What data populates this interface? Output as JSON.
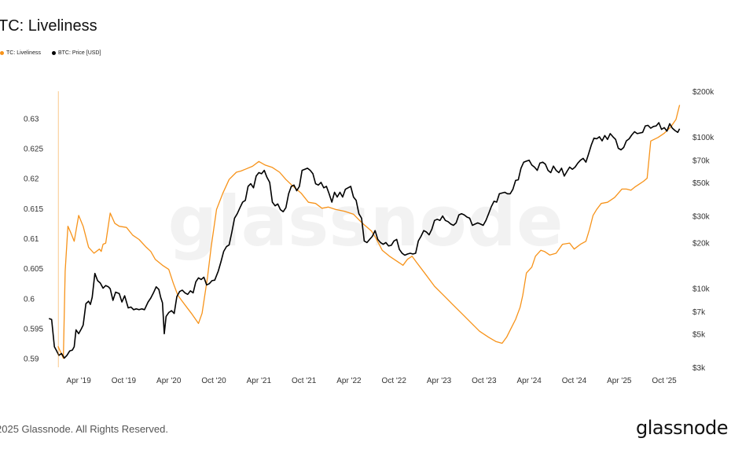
{
  "chart_data": {
    "type": "line",
    "title": "TC: Liveliness",
    "legend": [
      {
        "name": "TC: Liveliness",
        "color": "#f7931a"
      },
      {
        "name": "BTC: Price [USD]",
        "color": "#000000"
      }
    ],
    "x_ticks": [
      "Apr '19",
      "Oct '19",
      "Apr '20",
      "Oct '20",
      "Apr '21",
      "Oct '21",
      "Apr '22",
      "Oct '22",
      "Apr '23",
      "Oct '23",
      "Apr '24",
      "Oct '24",
      "Apr '25",
      "Oct '25"
    ],
    "x_range": [
      2018.9,
      2025.95
    ],
    "y_left": {
      "ticks": [
        0.59,
        0.595,
        0.6,
        0.605,
        0.61,
        0.615,
        0.62,
        0.625,
        0.63
      ],
      "labels": [
        "0.59",
        "0.595",
        "0.6",
        "0.605",
        "0.61",
        "0.615",
        "0.62",
        "0.625",
        "0.63"
      ],
      "range": [
        0.5885,
        0.6345
      ]
    },
    "y_right": {
      "scale": "log",
      "ticks": [
        3000,
        5000,
        7000,
        10000,
        20000,
        30000,
        50000,
        70000,
        100000,
        200000
      ],
      "labels": [
        "$3k",
        "$5k",
        "$7k",
        "$10k",
        "$20k",
        "$30k",
        "$50k",
        "$70k",
        "$100k",
        "$200k"
      ],
      "range": [
        3000,
        200000
      ]
    },
    "series": [
      {
        "name": "TC: Liveliness",
        "axis": "left",
        "color": "#f7931a",
        "x": [
          2019.02,
          2019.05,
          2019.08,
          2019.1,
          2019.13,
          2019.16,
          2019.2,
          2019.25,
          2019.3,
          2019.36,
          2019.42,
          2019.48,
          2019.5,
          2019.52,
          2019.55,
          2019.6,
          2019.65,
          2019.7,
          2019.78,
          2019.85,
          2019.92,
          2020.0,
          2020.05,
          2020.1,
          2020.18,
          2020.25,
          2020.3,
          2020.35,
          2020.4,
          2020.45,
          2020.5,
          2020.58,
          2020.62,
          2020.68,
          2020.72,
          2020.78,
          2020.85,
          2020.92,
          2021.0,
          2021.05,
          2021.1,
          2021.18,
          2021.25,
          2021.32,
          2021.4,
          2021.48,
          2021.55,
          2021.62,
          2021.72,
          2021.8,
          2021.88,
          2021.95,
          2022.02,
          2022.1,
          2022.2,
          2022.3,
          2022.4,
          2022.5,
          2022.55,
          2022.62,
          2022.7,
          2022.78,
          2022.85,
          2022.9,
          2022.95,
          2023.0,
          2023.1,
          2023.2,
          2023.3,
          2023.4,
          2023.5,
          2023.6,
          2023.7,
          2023.8,
          2023.88,
          2023.95,
          2024.0,
          2024.05,
          2024.1,
          2024.15,
          2024.18,
          2024.22,
          2024.28,
          2024.32,
          2024.38,
          2024.42,
          2024.48,
          2024.55,
          2024.62,
          2024.7,
          2024.75,
          2024.82,
          2024.88,
          2024.92,
          2024.96,
          2025.0,
          2025.05,
          2025.12,
          2025.2,
          2025.28,
          2025.33,
          2025.38,
          2025.42,
          2025.47,
          2025.52,
          2025.56,
          2025.6,
          2025.68,
          2025.75,
          2025.82,
          2025.88,
          2025.92
        ],
        "values": [
          0.592,
          0.591,
          0.59,
          0.6045,
          0.612,
          0.611,
          0.6095,
          0.6138,
          0.612,
          0.6085,
          0.6075,
          0.6082,
          0.6078,
          0.609,
          0.6092,
          0.6142,
          0.6125,
          0.612,
          0.6118,
          0.6105,
          0.6098,
          0.6085,
          0.6078,
          0.6065,
          0.6055,
          0.6048,
          0.6025,
          0.6005,
          0.5995,
          0.5985,
          0.5975,
          0.5958,
          0.5975,
          0.6035,
          0.6085,
          0.6148,
          0.6175,
          0.6198,
          0.621,
          0.6212,
          0.6215,
          0.622,
          0.6228,
          0.6222,
          0.6218,
          0.621,
          0.6198,
          0.6188,
          0.6175,
          0.616,
          0.6158,
          0.615,
          0.6152,
          0.6148,
          0.6145,
          0.614,
          0.6125,
          0.6112,
          0.61,
          0.608,
          0.607,
          0.6062,
          0.6055,
          0.6065,
          0.607,
          0.606,
          0.604,
          0.602,
          0.6005,
          0.599,
          0.5975,
          0.596,
          0.5945,
          0.5935,
          0.5928,
          0.5925,
          0.5935,
          0.595,
          0.5965,
          0.5985,
          0.6005,
          0.6042,
          0.6052,
          0.607,
          0.608,
          0.6078,
          0.6072,
          0.6075,
          0.609,
          0.6092,
          0.6082,
          0.609,
          0.6095,
          0.6115,
          0.6138,
          0.6148,
          0.6158,
          0.616,
          0.6168,
          0.6182,
          0.6182,
          0.618,
          0.6185,
          0.619,
          0.6195,
          0.62,
          0.6262,
          0.6268,
          0.6275,
          0.6285,
          0.6298,
          0.6322
        ]
      },
      {
        "name": "BTC: Price [USD]",
        "axis": "right",
        "color": "#000000",
        "x": [
          2018.92,
          2018.95,
          2018.98,
          2019.0,
          2019.03,
          2019.06,
          2019.09,
          2019.12,
          2019.15,
          2019.18,
          2019.2,
          2019.22,
          2019.25,
          2019.28,
          2019.3,
          2019.33,
          2019.36,
          2019.38,
          2019.4,
          2019.43,
          2019.46,
          2019.49,
          2019.52,
          2019.55,
          2019.58,
          2019.6,
          2019.63,
          2019.66,
          2019.7,
          2019.73,
          2019.76,
          2019.8,
          2019.83,
          2019.86,
          2019.89,
          2019.92,
          2019.95,
          2019.98,
          2020.02,
          2020.05,
          2020.08,
          2020.11,
          2020.14,
          2020.16,
          2020.18,
          2020.2,
          2020.22,
          2020.25,
          2020.28,
          2020.31,
          2020.34,
          2020.37,
          2020.4,
          2020.43,
          2020.46,
          2020.49,
          2020.52,
          2020.55,
          2020.58,
          2020.61,
          2020.64,
          2020.67,
          2020.7,
          2020.73,
          2020.76,
          2020.8,
          2020.83,
          2020.86,
          2020.89,
          2020.92,
          2020.95,
          2020.98,
          2021.01,
          2021.04,
          2021.07,
          2021.1,
          2021.13,
          2021.16,
          2021.19,
          2021.22,
          2021.25,
          2021.28,
          2021.31,
          2021.34,
          2021.37,
          2021.4,
          2021.43,
          2021.46,
          2021.49,
          2021.52,
          2021.55,
          2021.58,
          2021.61,
          2021.64,
          2021.67,
          2021.7,
          2021.73,
          2021.76,
          2021.79,
          2021.82,
          2021.85,
          2021.88,
          2021.91,
          2021.94,
          2021.97,
          2022.0,
          2022.03,
          2022.06,
          2022.09,
          2022.12,
          2022.15,
          2022.18,
          2022.21,
          2022.24,
          2022.27,
          2022.3,
          2022.33,
          2022.36,
          2022.39,
          2022.42,
          2022.45,
          2022.48,
          2022.51,
          2022.54,
          2022.57,
          2022.6,
          2022.63,
          2022.66,
          2022.69,
          2022.72,
          2022.75,
          2022.78,
          2022.81,
          2022.84,
          2022.87,
          2022.9,
          2022.93,
          2022.96,
          2022.99,
          2023.02,
          2023.05,
          2023.08,
          2023.11,
          2023.14,
          2023.17,
          2023.2,
          2023.23,
          2023.26,
          2023.29,
          2023.32,
          2023.35,
          2023.38,
          2023.41,
          2023.44,
          2023.47,
          2023.5,
          2023.53,
          2023.56,
          2023.59,
          2023.62,
          2023.65,
          2023.68,
          2023.71,
          2023.74,
          2023.77,
          2023.8,
          2023.83,
          2023.86,
          2023.89,
          2023.92,
          2023.95,
          2023.98,
          2024.01,
          2024.04,
          2024.07,
          2024.1,
          2024.13,
          2024.16,
          2024.19,
          2024.22,
          2024.25,
          2024.28,
          2024.31,
          2024.34,
          2024.37,
          2024.4,
          2024.43,
          2024.46,
          2024.49,
          2024.52,
          2024.55,
          2024.58,
          2024.61,
          2024.64,
          2024.67,
          2024.7,
          2024.73,
          2024.76,
          2024.79,
          2024.82,
          2024.85,
          2024.88,
          2024.91,
          2024.94,
          2024.97,
          2025.0,
          2025.03,
          2025.06,
          2025.09,
          2025.12,
          2025.15,
          2025.18,
          2025.21,
          2025.24,
          2025.27,
          2025.3,
          2025.33,
          2025.36,
          2025.39,
          2025.42,
          2025.45,
          2025.48,
          2025.51,
          2025.54,
          2025.57,
          2025.6,
          2025.63,
          2025.66,
          2025.69,
          2025.72,
          2025.75,
          2025.78,
          2025.81,
          2025.84,
          2025.87,
          2025.9,
          2025.92
        ],
        "values": [
          6300,
          6200,
          4100,
          3900,
          3600,
          3700,
          3450,
          3600,
          3850,
          3900,
          4100,
          5300,
          5000,
          5400,
          5700,
          7900,
          8200,
          7800,
          8700,
          12500,
          11200,
          10800,
          10000,
          10400,
          10200,
          9900,
          8300,
          9400,
          9200,
          8100,
          8900,
          7400,
          7500,
          7200,
          7300,
          7200,
          7300,
          7200,
          8100,
          8600,
          9300,
          10200,
          9800,
          8700,
          8000,
          5000,
          6500,
          6900,
          7100,
          6800,
          8800,
          9500,
          9700,
          9300,
          9100,
          9600,
          9300,
          11000,
          11700,
          11400,
          11800,
          10500,
          10700,
          11200,
          11300,
          13000,
          15000,
          17500,
          18800,
          19300,
          23500,
          29000,
          31000,
          34000,
          37000,
          38000,
          47000,
          49000,
          46000,
          55000,
          58000,
          57000,
          60000,
          54000,
          50000,
          37000,
          35000,
          36000,
          33000,
          32000,
          34000,
          42000,
          47000,
          48000,
          44000,
          47000,
          60000,
          61000,
          62000,
          60000,
          57000,
          49000,
          48000,
          50000,
          46000,
          47000,
          42000,
          37000,
          43000,
          40000,
          43000,
          40000,
          45000,
          46000,
          47000,
          40000,
          38000,
          31000,
          29000,
          20500,
          20000,
          21000,
          22000,
          24000,
          21000,
          20000,
          19500,
          20000,
          19000,
          19200,
          20500,
          21000,
          18000,
          17000,
          16500,
          16800,
          17000,
          16800,
          17000,
          20500,
          22000,
          24000,
          23500,
          22500,
          24500,
          28000,
          28500,
          28000,
          30000,
          28000,
          27500,
          26500,
          26000,
          27000,
          30500,
          31000,
          30500,
          29500,
          29000,
          26000,
          26500,
          27000,
          26500,
          26000,
          28000,
          31000,
          34500,
          37500,
          37000,
          42000,
          42500,
          43000,
          42000,
          42000,
          45000,
          51500,
          52000,
          62000,
          68000,
          69000,
          70000,
          65000,
          63000,
          60000,
          67000,
          68000,
          66000,
          60000,
          58000,
          64000,
          60000,
          58000,
          62000,
          55000,
          59000,
          63000,
          61000,
          63000,
          67000,
          70000,
          72000,
          68000,
          77000,
          88000,
          98000,
          97000,
          100000,
          94000,
          102000,
          96000,
          105000,
          100000,
          96000,
          84000,
          82000,
          85000,
          94000,
          97000,
          103000,
          108000,
          105000,
          106000,
          107000,
          118000,
          119000,
          114000,
          117000,
          118000,
          124000,
          112000,
          115000,
          109000,
          122000,
          114000,
          110000,
          107000,
          113000
        ]
      }
    ]
  },
  "watermark": "glassnode",
  "footer": {
    "copyright": "2025 Glassnode. All Rights Reserved.",
    "brand": "glassnode"
  }
}
